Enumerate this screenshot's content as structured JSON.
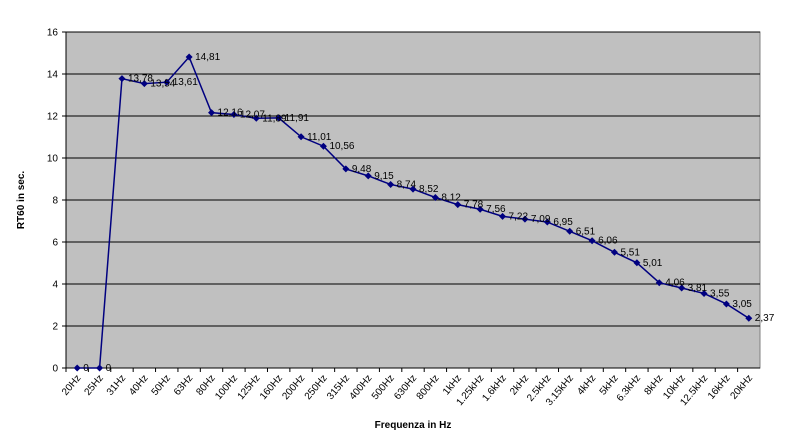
{
  "chart_data": {
    "type": "line",
    "title": "",
    "xlabel": "Frequenza in Hz",
    "ylabel": "RT60 in sec.",
    "ylim": [
      0,
      16
    ],
    "yticks": [
      0,
      2,
      4,
      6,
      8,
      10,
      12,
      14,
      16
    ],
    "grid": "horizontal",
    "legend": "none",
    "categories": [
      "20Hz",
      "25Hz",
      "31Hz",
      "40Hz",
      "50Hz",
      "63Hz",
      "80Hz",
      "100Hz",
      "125Hz",
      "160Hz",
      "200Hz",
      "250Hz",
      "315Hz",
      "400Hz",
      "500Hz",
      "630Hz",
      "800Hz",
      "1kHz",
      "1.25kHz",
      "1.6kHz",
      "2kHz",
      "2.5kHz",
      "3.15kHz",
      "4kHz",
      "5kHz",
      "6.3kHz",
      "8kHz",
      "10kHz",
      "12.5kHz",
      "16kHz",
      "20kHz"
    ],
    "values": [
      0,
      0,
      13.78,
      13.54,
      13.61,
      14.81,
      12.16,
      12.07,
      11.89,
      11.91,
      11.01,
      10.56,
      9.48,
      9.15,
      8.74,
      8.52,
      8.12,
      7.78,
      7.56,
      7.22,
      7.09,
      6.95,
      6.51,
      6.06,
      5.51,
      5.01,
      4.06,
      3.81,
      3.55,
      3.05,
      2.37
    ],
    "data_labels": [
      "0",
      "0",
      "13,78",
      "13,54",
      "13,61",
      "14,81",
      "12,16",
      "12,07",
      "11,89",
      "11,91",
      "11,01",
      "10,56",
      "9,48",
      "9,15",
      "8,74",
      "8,52",
      "8,12",
      "7,78",
      "7,56",
      "7,22",
      "7,09",
      "6,95",
      "6,51",
      "6,06",
      "5,51",
      "5,01",
      "4,06",
      "3,81",
      "3,55",
      "3,05",
      "2,37"
    ],
    "colors": {
      "plot_background": "#c0c0c0",
      "line": "#000080",
      "gridline": "#000000"
    }
  }
}
